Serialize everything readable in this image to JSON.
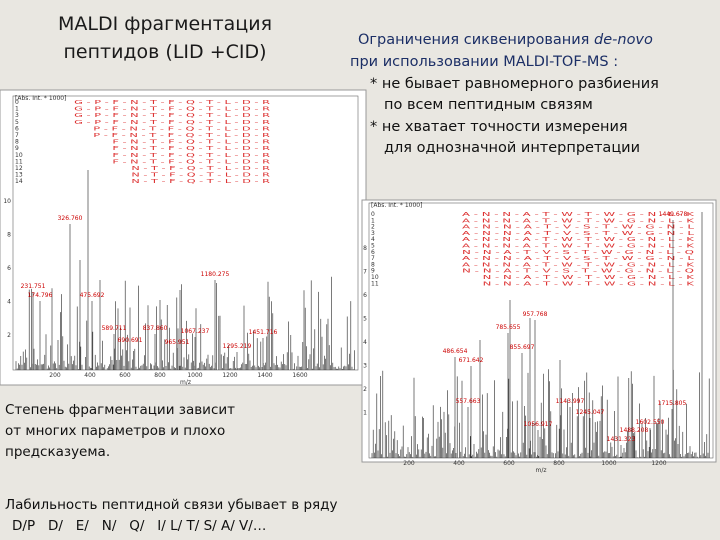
{
  "left_title": [
    "MALDI фрагментация",
    "пептидов (LID +CID)"
  ],
  "right_title": {
    "line1": "Ограничения сиквенирования ",
    "line1_italic": "de-novo",
    "line2": "при использовании MALDI-TOF-MS :"
  },
  "right_bullets": [
    "* не бывает равномерного разбиения",
    "по всем пептидным связям",
    "* не хватает точности измерения",
    "для однозначной интерпретации"
  ],
  "left_note": [
    "Степень фрагментации зависит",
    "от многих параметров и плохо",
    "предсказуема."
  ],
  "bottom": [
    "Лабильность пептидной связи убывает в ряду",
    "D/P   D/   E/   N/   Q/   I/ L/ T/ S/ A/ V/…"
  ],
  "spectra": [
    {
      "ylabel": "[Abs. Int. * 1000]",
      "xlabel": "m/z",
      "xticks": [
        "200",
        "400",
        "600",
        "800",
        "1000",
        "1200",
        "1400",
        "1600"
      ],
      "yticks": [
        "10",
        "8",
        "6",
        "4",
        "2"
      ],
      "ladder_numbers": [
        "0",
        "1",
        "3",
        "5",
        "6",
        "7",
        "8",
        "9",
        "10",
        "11",
        "12",
        "13",
        "14"
      ],
      "ladder": [
        "G - P - F - N - T - F - Q - T - L - D - R",
        "G - P - F - N - T - F - Q - T - L - D - R",
        "G - P - F - N - T - F - Q - T - L - D - R",
        "G - P - F - N - T - F - Q - T - L - D - R",
        "P - F - N - T - F - Q - T - L - D - R",
        "P - F - N - T - F - Q - T - L - D - R",
        "F - N - T - F - Q - T - L - D - R",
        "F - N - T - F - Q - T - L - D - R",
        "F - N - T - F - Q - T - L - D - R",
        "F - N - T - F - Q - T - L - D - R",
        "N - T - F - Q - T - L - D - R",
        "N - T - F - Q - T - L - D - R",
        "N - T - F - Q - T - L - D - R"
      ],
      "peaks": [
        "326.760",
        "231.751",
        "174.796",
        "475.692",
        "1180.275",
        "589.711",
        "837.860",
        "1067.237",
        "1451.716",
        "690.691",
        "965.951",
        "1295.219"
      ]
    },
    {
      "ylabel": "[Abs. Int. * 1000]",
      "xlabel": "m/z",
      "xticks": [
        "200",
        "400",
        "600",
        "800",
        "1000",
        "1200"
      ],
      "yticks": [
        "8",
        "7",
        "6",
        "5",
        "4",
        "3",
        "2",
        "1"
      ],
      "ladder_numbers": [
        "0",
        "1",
        "2",
        "3",
        "4",
        "5",
        "6",
        "7",
        "8",
        "9",
        "10",
        "11"
      ],
      "ladder": [
        "A - N - N - A - T - W - T - W - G - N - L - K",
        "A - N - N - A - T - W - T - W - G - N - L - K",
        "A - N - N - A - T - V - S - T - W - G - N - L",
        "A - N - N - A - T - V - S - T - W - G - N - L",
        "A - N - N - A - T - W - T - W - G - N - L - K",
        "A - N - N - A - T - W - T - W - G - N - L - K",
        "N - N - A - T - V - S - T - W - G - N - L - Q",
        "A - N - N - A - T - V - S - T - W - G - N - L",
        "A - N - N - A - T - W - T - W - G - N - L - K",
        "N - N - A - T - V - S - T - W - G - N - L - Q",
        "N - N - A - T - W - T - W - G - N - L - K",
        "N - N - A - T - W - T - W - G - N - L - K"
      ],
      "peaks": [
        "1449.678",
        "957.768",
        "785.655",
        "855.697",
        "486.654",
        "671.642",
        "557.663",
        "1143.997",
        "1715.805",
        "1245.047",
        "1056.917",
        "1602.550",
        "1488.208",
        "1431.323"
      ]
    }
  ]
}
